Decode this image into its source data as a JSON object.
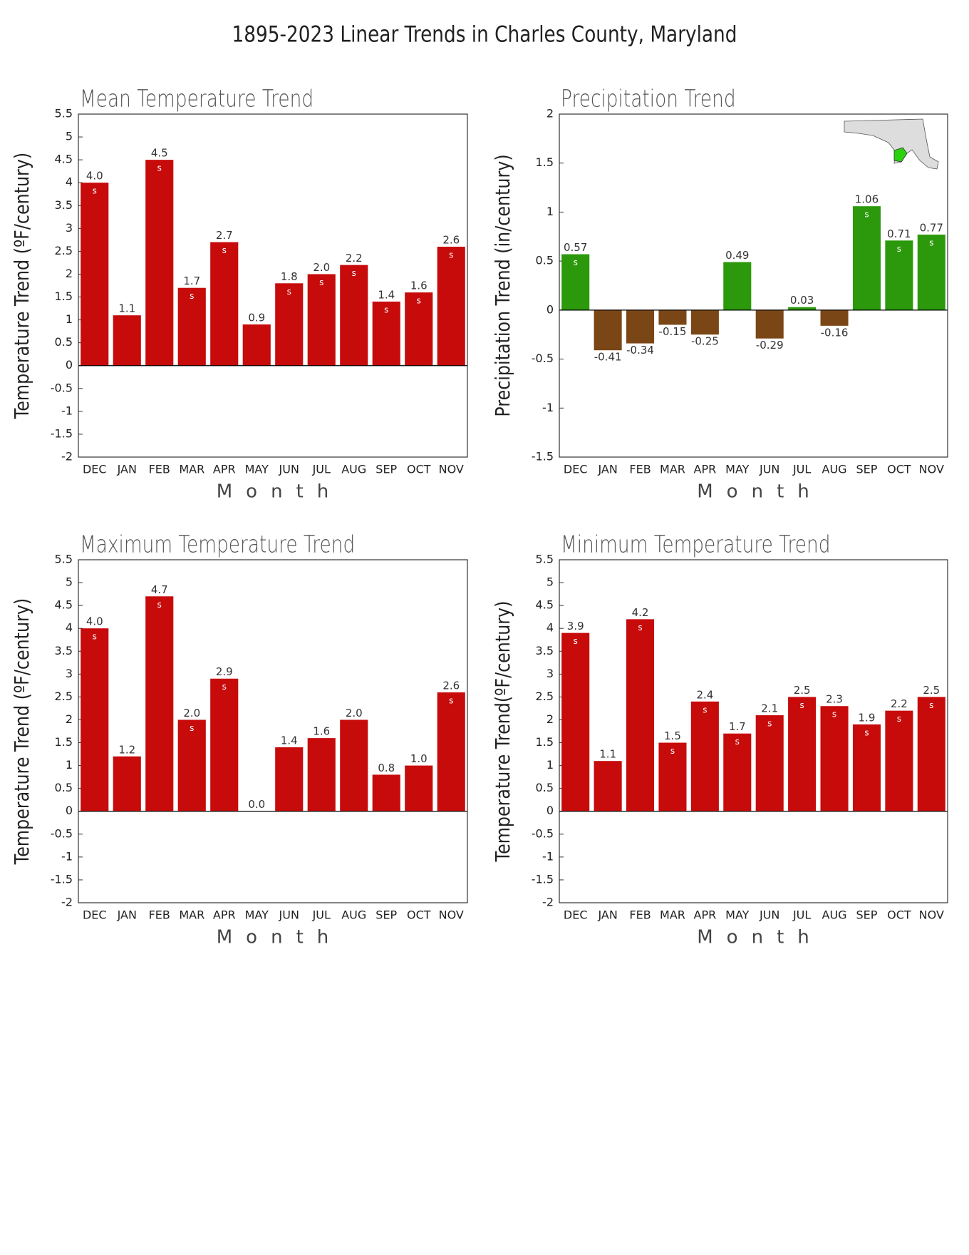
{
  "title": "1895-2023 Linear Trends in Charles County, Maryland",
  "chart_data": [
    {
      "type": "bar",
      "title": "Mean Temperature Trend",
      "x_label": "Month",
      "y_label": "Temperature Trend (ºF/century)",
      "categories": [
        "DEC",
        "JAN",
        "FEB",
        "MAR",
        "APR",
        "MAY",
        "JUN",
        "JUL",
        "AUG",
        "SEP",
        "OCT",
        "NOV"
      ],
      "values": [
        4.0,
        1.1,
        4.5,
        1.7,
        2.7,
        0.9,
        1.8,
        2.0,
        2.2,
        1.4,
        1.6,
        2.6
      ],
      "value_labels": [
        "4.0",
        "1.1",
        "4.5",
        "1.7",
        "2.7",
        "0.9",
        "1.8",
        "2.0",
        "2.2",
        "1.4",
        "1.6",
        "2.6"
      ],
      "markers": [
        "s",
        null,
        "s",
        "s",
        "s",
        null,
        "s",
        "s",
        "s",
        "s",
        "s",
        "s"
      ],
      "color": "#c70a0a",
      "neg_color": "#c70a0a",
      "ylim": [
        -2,
        5.5
      ],
      "yticks": [
        -2,
        -1.5,
        -1,
        -0.5,
        0,
        0.5,
        1,
        1.5,
        2,
        2.5,
        3,
        3.5,
        4,
        4.5,
        5,
        5.5
      ]
    },
    {
      "type": "bar",
      "title": "Precipitation Trend",
      "x_label": "Month",
      "y_label": "Precipitation Trend (in/century)",
      "categories": [
        "DEC",
        "JAN",
        "FEB",
        "MAR",
        "APR",
        "MAY",
        "JUN",
        "JUL",
        "AUG",
        "SEP",
        "OCT",
        "NOV"
      ],
      "values": [
        0.57,
        -0.41,
        -0.34,
        -0.15,
        -0.25,
        0.49,
        -0.29,
        0.03,
        -0.16,
        1.06,
        0.71,
        0.77
      ],
      "markers": [
        "s",
        null,
        null,
        null,
        null,
        null,
        null,
        null,
        null,
        "s",
        "s",
        "s"
      ],
      "color": "#2b990b",
      "neg_color": "#7b4616",
      "ylim": [
        -1.5,
        2
      ],
      "yticks": [
        -1.5,
        -1,
        -0.5,
        0,
        0.5,
        1,
        1.5,
        2
      ]
    },
    {
      "type": "bar",
      "title": "Maximum Temperature Trend",
      "x_label": "Month",
      "y_label": "Temperature Trend (ºF/century)",
      "categories": [
        "DEC",
        "JAN",
        "FEB",
        "MAR",
        "APR",
        "MAY",
        "JUN",
        "JUL",
        "AUG",
        "SEP",
        "OCT",
        "NOV"
      ],
      "values": [
        4.0,
        1.2,
        4.7,
        2.0,
        2.9,
        0.0,
        1.4,
        1.6,
        2.0,
        0.8,
        1.0,
        2.6
      ],
      "value_labels": [
        "4.0",
        "1.2",
        "4.7",
        "2.0",
        "2.9",
        "0.0",
        "1.4",
        "1.6",
        "2.0",
        "0.8",
        "1.0",
        "2.6"
      ],
      "markers": [
        "s",
        null,
        "s",
        "s",
        "s",
        null,
        null,
        null,
        null,
        null,
        null,
        "s"
      ],
      "color": "#c70a0a",
      "neg_color": "#c70a0a",
      "ylim": [
        -2,
        5.5
      ],
      "yticks": [
        -2,
        -1.5,
        -1,
        -0.5,
        0,
        0.5,
        1,
        1.5,
        2,
        2.5,
        3,
        3.5,
        4,
        4.5,
        5,
        5.5
      ]
    },
    {
      "type": "bar",
      "title": "Minimum Temperature Trend",
      "x_label": "Month",
      "y_label": "Temperature Trend(ºF/century)",
      "categories": [
        "DEC",
        "JAN",
        "FEB",
        "MAR",
        "APR",
        "MAY",
        "JUN",
        "JUL",
        "AUG",
        "SEP",
        "OCT",
        "NOV"
      ],
      "values": [
        3.9,
        1.1,
        4.2,
        1.5,
        2.4,
        1.7,
        2.1,
        2.5,
        2.3,
        1.9,
        2.2,
        2.5
      ],
      "value_labels": [
        "3.9",
        "1.1",
        "4.2",
        "1.5",
        "2.4",
        "1.7",
        "2.1",
        "2.5",
        "2.3",
        "1.9",
        "2.2",
        "2.5"
      ],
      "markers": [
        "s",
        null,
        "s",
        "s",
        "s",
        "s",
        "s",
        "s",
        "s",
        "s",
        "s",
        "s"
      ],
      "color": "#c70a0a",
      "neg_color": "#c70a0a",
      "ylim": [
        -2,
        5.5
      ],
      "yticks": [
        -2,
        -1.5,
        -1,
        -0.5,
        0,
        0.5,
        1,
        1.5,
        2,
        2.5,
        3,
        3.5,
        4,
        4.5,
        5,
        5.5
      ]
    }
  ]
}
